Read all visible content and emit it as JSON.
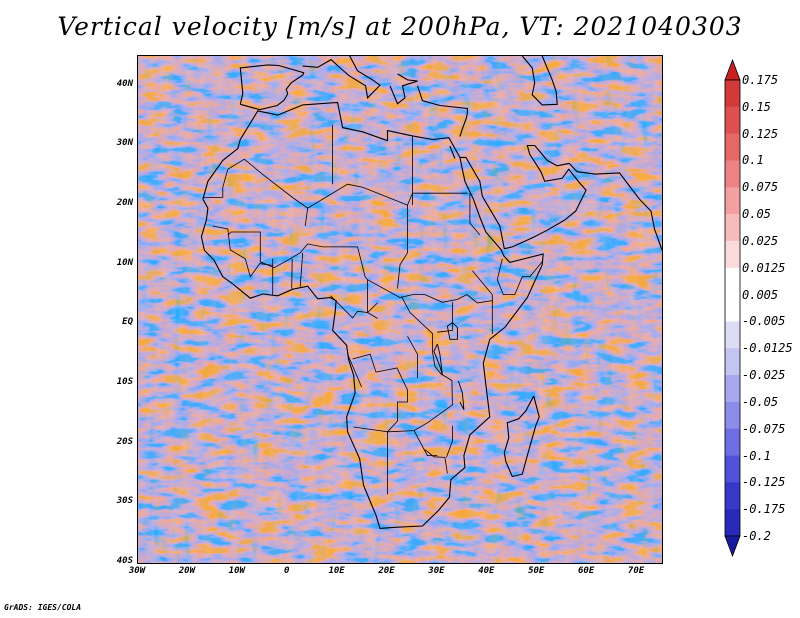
{
  "title": "Vertical velocity [m/s] at 200hPa, VT: 2021040303",
  "footer": "GrADS: IGES/COLA",
  "map": {
    "lat_range": [
      -40,
      45
    ],
    "lon_range": [
      -30,
      75
    ],
    "lat_labels": [
      "40N",
      "30N",
      "20N",
      "10N",
      "EQ",
      "10S",
      "20S",
      "30S",
      "40S"
    ],
    "lat_values": [
      40,
      30,
      20,
      10,
      0,
      -10,
      -20,
      -30,
      -40
    ],
    "lon_labels": [
      "30W",
      "20W",
      "10W",
      "0",
      "10E",
      "20E",
      "30E",
      "40E",
      "50E",
      "60E",
      "70E"
    ],
    "lon_values": [
      -30,
      -20,
      -10,
      0,
      10,
      20,
      30,
      40,
      50,
      60,
      70
    ],
    "background_color": "#d4d4f2",
    "coastline_color": "#000000"
  },
  "colorbar": {
    "levels": [
      "0.175",
      "0.15",
      "0.125",
      "0.1",
      "0.075",
      "0.05",
      "0.025",
      "0.0125",
      "0.005",
      "-0.005",
      "-0.0125",
      "-0.025",
      "-0.05",
      "-0.075",
      "-0.1",
      "-0.125",
      "-0.175",
      "-0.2"
    ],
    "colors": [
      "#c82020",
      "#d23a3a",
      "#dc5050",
      "#e46868",
      "#ec8282",
      "#f2a0a0",
      "#f6bcbc",
      "#fadada",
      "#ffffff",
      "#ffffff",
      "#dcdcf6",
      "#c4c4f2",
      "#a8a8ee",
      "#8c8cea",
      "#6e6ee2",
      "#5050d8",
      "#3838c8",
      "#2a2aba",
      "#1a1aa0"
    ]
  }
}
